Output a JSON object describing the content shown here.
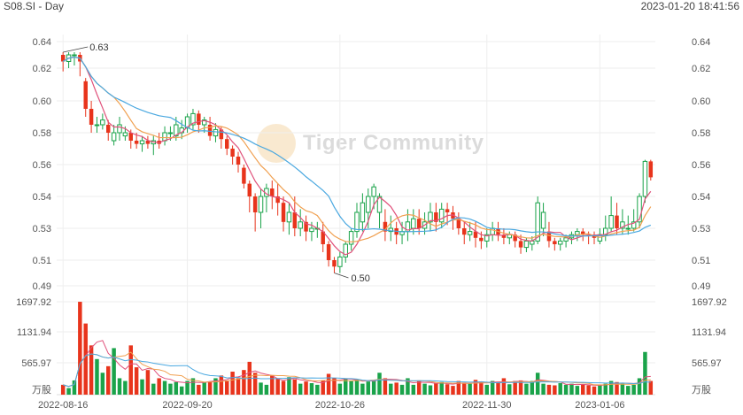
{
  "header": {
    "symbol_period": "S08.SI - Day",
    "timestamp": "2023-01-20 18:41:56"
  },
  "watermark": {
    "text": "Tiger Community"
  },
  "colors": {
    "up": "#1aa34a",
    "down": "#e8341c",
    "ma_short": "#e0507a",
    "ma_mid": "#f0a050",
    "ma_long": "#4aa8e0",
    "grid": "#eeeeee"
  },
  "chart_data": {
    "type": "candlestick",
    "price_axis": {
      "ticks": [
        "0.64",
        "0.62",
        "0.60",
        "0.58",
        "0.56",
        "0.54",
        "0.53",
        "0.51",
        "0.49"
      ]
    },
    "volume_axis": {
      "ticks": [
        "1697.92",
        "1131.94",
        "565.97"
      ],
      "unit": "万股"
    },
    "x_ticks": [
      "2022-08-16",
      "2022-09-20",
      "2022-10-26",
      "2022-11-30",
      "2023-01-06"
    ],
    "annotations": [
      {
        "label": "0.63"
      },
      {
        "label": "0.50"
      }
    ],
    "bars": [
      {
        "date": "2022-08-16",
        "o": 0.63,
        "c": 0.625,
        "h": 0.632,
        "l": 0.618,
        "v": 180
      },
      {
        "o": 0.625,
        "c": 0.63,
        "h": 0.632,
        "l": 0.62,
        "v": 120
      },
      {
        "o": 0.63,
        "c": 0.63,
        "h": 0.632,
        "l": 0.622,
        "v": 260
      },
      {
        "o": 0.63,
        "c": 0.625,
        "h": 0.632,
        "l": 0.615,
        "v": 1697
      },
      {
        "o": 0.612,
        "c": 0.595,
        "h": 0.614,
        "l": 0.59,
        "v": 1300
      },
      {
        "o": 0.595,
        "c": 0.585,
        "h": 0.6,
        "l": 0.58,
        "v": 900
      },
      {
        "o": 0.585,
        "c": 0.585,
        "h": 0.59,
        "l": 0.58,
        "v": 650
      },
      {
        "o": 0.585,
        "c": 0.588,
        "h": 0.592,
        "l": 0.582,
        "v": 400
      },
      {
        "o": 0.585,
        "c": 0.58,
        "h": 0.588,
        "l": 0.575,
        "v": 520
      },
      {
        "o": 0.575,
        "c": 0.58,
        "h": 0.585,
        "l": 0.572,
        "v": 850
      },
      {
        "o": 0.58,
        "c": 0.585,
        "h": 0.59,
        "l": 0.575,
        "v": 300
      },
      {
        "o": 0.578,
        "c": 0.58,
        "h": 0.584,
        "l": 0.575,
        "v": 250
      },
      {
        "o": 0.58,
        "c": 0.575,
        "h": 0.582,
        "l": 0.57,
        "v": 900
      },
      {
        "o": 0.575,
        "c": 0.573,
        "h": 0.58,
        "l": 0.57,
        "v": 500
      },
      {
        "o": 0.573,
        "c": 0.575,
        "h": 0.578,
        "l": 0.568,
        "v": 280
      },
      {
        "o": 0.575,
        "c": 0.573,
        "h": 0.578,
        "l": 0.57,
        "v": 450
      },
      {
        "o": 0.573,
        "c": 0.575,
        "h": 0.578,
        "l": 0.566,
        "v": 200
      },
      {
        "o": 0.575,
        "c": 0.573,
        "h": 0.58,
        "l": 0.57,
        "v": 300
      },
      {
        "o": 0.575,
        "c": 0.58,
        "h": 0.584,
        "l": 0.572,
        "v": 250
      },
      {
        "o": 0.58,
        "c": 0.58,
        "h": 0.584,
        "l": 0.575,
        "v": 200
      },
      {
        "o": 0.578,
        "c": 0.585,
        "h": 0.59,
        "l": 0.575,
        "v": 230
      },
      {
        "o": 0.58,
        "c": 0.583,
        "h": 0.588,
        "l": 0.576,
        "v": 150
      },
      {
        "date": "2022-09-20",
        "o": 0.583,
        "c": 0.59,
        "h": 0.592,
        "l": 0.58,
        "v": 250
      },
      {
        "o": 0.585,
        "c": 0.592,
        "h": 0.595,
        "l": 0.582,
        "v": 300
      },
      {
        "o": 0.592,
        "c": 0.585,
        "h": 0.594,
        "l": 0.58,
        "v": 180
      },
      {
        "o": 0.585,
        "c": 0.588,
        "h": 0.59,
        "l": 0.58,
        "v": 230
      },
      {
        "o": 0.585,
        "c": 0.578,
        "h": 0.59,
        "l": 0.575,
        "v": 240
      },
      {
        "o": 0.578,
        "c": 0.582,
        "h": 0.586,
        "l": 0.574,
        "v": 300
      },
      {
        "o": 0.582,
        "c": 0.576,
        "h": 0.584,
        "l": 0.57,
        "v": 350
      },
      {
        "o": 0.576,
        "c": 0.57,
        "h": 0.578,
        "l": 0.566,
        "v": 260
      },
      {
        "o": 0.57,
        "c": 0.565,
        "h": 0.572,
        "l": 0.56,
        "v": 420
      },
      {
        "o": 0.565,
        "c": 0.56,
        "h": 0.568,
        "l": 0.555,
        "v": 300
      },
      {
        "o": 0.558,
        "c": 0.548,
        "h": 0.56,
        "l": 0.545,
        "v": 450
      },
      {
        "o": 0.548,
        "c": 0.54,
        "h": 0.55,
        "l": 0.535,
        "v": 600
      },
      {
        "o": 0.54,
        "c": 0.535,
        "h": 0.542,
        "l": 0.528,
        "v": 400
      },
      {
        "o": 0.535,
        "c": 0.54,
        "h": 0.545,
        "l": 0.53,
        "v": 220
      },
      {
        "o": 0.54,
        "c": 0.545,
        "h": 0.548,
        "l": 0.535,
        "v": 180
      },
      {
        "o": 0.545,
        "c": 0.54,
        "h": 0.55,
        "l": 0.536,
        "v": 350
      },
      {
        "o": 0.54,
        "c": 0.538,
        "h": 0.548,
        "l": 0.534,
        "v": 300
      },
      {
        "o": 0.538,
        "c": 0.532,
        "h": 0.54,
        "l": 0.528,
        "v": 250
      },
      {
        "o": 0.532,
        "c": 0.535,
        "h": 0.538,
        "l": 0.526,
        "v": 320
      },
      {
        "o": 0.535,
        "c": 0.53,
        "h": 0.54,
        "l": 0.525,
        "v": 280
      },
      {
        "o": 0.53,
        "c": 0.532,
        "h": 0.536,
        "l": 0.525,
        "v": 200
      },
      {
        "o": 0.532,
        "c": 0.528,
        "h": 0.534,
        "l": 0.522,
        "v": 240
      },
      {
        "o": 0.528,
        "c": 0.53,
        "h": 0.532,
        "l": 0.522,
        "v": 210
      },
      {
        "o": 0.53,
        "c": 0.53,
        "h": 0.532,
        "l": 0.524,
        "v": 180
      },
      {
        "o": 0.528,
        "c": 0.52,
        "h": 0.532,
        "l": 0.515,
        "v": 260
      },
      {
        "o": 0.52,
        "c": 0.51,
        "h": 0.522,
        "l": 0.505,
        "v": 380
      },
      {
        "o": 0.51,
        "c": 0.505,
        "h": 0.512,
        "l": 0.5,
        "v": 300
      },
      {
        "date": "2022-10-26",
        "o": 0.505,
        "c": 0.512,
        "h": 0.515,
        "l": 0.5,
        "v": 200
      },
      {
        "o": 0.512,
        "c": 0.52,
        "h": 0.522,
        "l": 0.508,
        "v": 300
      },
      {
        "o": 0.52,
        "c": 0.528,
        "h": 0.53,
        "l": 0.516,
        "v": 250
      },
      {
        "o": 0.528,
        "c": 0.535,
        "h": 0.538,
        "l": 0.524,
        "v": 280
      },
      {
        "o": 0.532,
        "c": 0.538,
        "h": 0.542,
        "l": 0.528,
        "v": 200
      },
      {
        "o": 0.535,
        "c": 0.54,
        "h": 0.545,
        "l": 0.53,
        "v": 240
      },
      {
        "o": 0.54,
        "c": 0.546,
        "h": 0.548,
        "l": 0.536,
        "v": 260
      },
      {
        "o": 0.535,
        "c": 0.54,
        "h": 0.542,
        "l": 0.53,
        "v": 400
      },
      {
        "o": 0.532,
        "c": 0.528,
        "h": 0.536,
        "l": 0.522,
        "v": 300
      },
      {
        "o": 0.528,
        "c": 0.53,
        "h": 0.534,
        "l": 0.522,
        "v": 200
      },
      {
        "o": 0.53,
        "c": 0.526,
        "h": 0.532,
        "l": 0.52,
        "v": 220
      },
      {
        "o": 0.526,
        "c": 0.528,
        "h": 0.532,
        "l": 0.52,
        "v": 180
      },
      {
        "o": 0.528,
        "c": 0.532,
        "h": 0.536,
        "l": 0.522,
        "v": 300
      },
      {
        "o": 0.53,
        "c": 0.533,
        "h": 0.536,
        "l": 0.526,
        "v": 180
      },
      {
        "o": 0.533,
        "c": 0.53,
        "h": 0.536,
        "l": 0.526,
        "v": 260
      },
      {
        "o": 0.53,
        "c": 0.532,
        "h": 0.535,
        "l": 0.526,
        "v": 200
      },
      {
        "o": 0.532,
        "c": 0.535,
        "h": 0.538,
        "l": 0.528,
        "v": 170
      },
      {
        "o": 0.535,
        "c": 0.532,
        "h": 0.538,
        "l": 0.528,
        "v": 210
      },
      {
        "o": 0.532,
        "c": 0.536,
        "h": 0.538,
        "l": 0.53,
        "v": 230
      },
      {
        "o": 0.536,
        "c": 0.535,
        "h": 0.538,
        "l": 0.531,
        "v": 190
      },
      {
        "o": 0.535,
        "c": 0.533,
        "h": 0.537,
        "l": 0.529,
        "v": 160
      },
      {
        "o": 0.533,
        "c": 0.53,
        "h": 0.535,
        "l": 0.526,
        "v": 250
      },
      {
        "o": 0.53,
        "c": 0.526,
        "h": 0.532,
        "l": 0.52,
        "v": 220
      },
      {
        "o": 0.526,
        "c": 0.528,
        "h": 0.532,
        "l": 0.522,
        "v": 200
      },
      {
        "o": 0.528,
        "c": 0.524,
        "h": 0.532,
        "l": 0.518,
        "v": 270
      },
      {
        "o": 0.524,
        "c": 0.522,
        "h": 0.528,
        "l": 0.517,
        "v": 240
      },
      {
        "date": "2022-11-30",
        "o": 0.522,
        "c": 0.526,
        "h": 0.53,
        "l": 0.518,
        "v": 180
      },
      {
        "o": 0.526,
        "c": 0.53,
        "h": 0.532,
        "l": 0.522,
        "v": 250
      },
      {
        "o": 0.53,
        "c": 0.526,
        "h": 0.532,
        "l": 0.522,
        "v": 220
      },
      {
        "o": 0.526,
        "c": 0.524,
        "h": 0.53,
        "l": 0.52,
        "v": 300
      },
      {
        "o": 0.524,
        "c": 0.526,
        "h": 0.528,
        "l": 0.52,
        "v": 190
      },
      {
        "o": 0.526,
        "c": 0.522,
        "h": 0.528,
        "l": 0.518,
        "v": 250
      },
      {
        "o": 0.522,
        "c": 0.518,
        "h": 0.526,
        "l": 0.514,
        "v": 260
      },
      {
        "o": 0.518,
        "c": 0.522,
        "h": 0.524,
        "l": 0.515,
        "v": 200
      },
      {
        "o": 0.52,
        "c": 0.522,
        "h": 0.525,
        "l": 0.516,
        "v": 250
      },
      {
        "o": 0.522,
        "c": 0.538,
        "h": 0.54,
        "l": 0.52,
        "v": 400
      },
      {
        "o": 0.53,
        "c": 0.535,
        "h": 0.538,
        "l": 0.525,
        "v": 200
      },
      {
        "o": 0.528,
        "c": 0.522,
        "h": 0.532,
        "l": 0.518,
        "v": 180
      },
      {
        "o": 0.522,
        "c": 0.52,
        "h": 0.524,
        "l": 0.516,
        "v": 170
      },
      {
        "o": 0.52,
        "c": 0.522,
        "h": 0.524,
        "l": 0.516,
        "v": 210
      },
      {
        "o": 0.522,
        "c": 0.524,
        "h": 0.526,
        "l": 0.518,
        "v": 180
      },
      {
        "o": 0.524,
        "c": 0.526,
        "h": 0.528,
        "l": 0.52,
        "v": 200
      },
      {
        "o": 0.526,
        "c": 0.528,
        "h": 0.53,
        "l": 0.522,
        "v": 160
      },
      {
        "o": 0.528,
        "c": 0.526,
        "h": 0.53,
        "l": 0.522,
        "v": 190
      },
      {
        "o": 0.526,
        "c": 0.525,
        "h": 0.528,
        "l": 0.52,
        "v": 170
      },
      {
        "o": 0.525,
        "c": 0.524,
        "h": 0.528,
        "l": 0.52,
        "v": 150
      },
      {
        "date": "2023-01-06",
        "o": 0.522,
        "c": 0.526,
        "h": 0.53,
        "l": 0.52,
        "v": 180
      },
      {
        "o": 0.526,
        "c": 0.53,
        "h": 0.534,
        "l": 0.522,
        "v": 200
      },
      {
        "o": 0.53,
        "c": 0.534,
        "h": 0.54,
        "l": 0.528,
        "v": 250
      },
      {
        "o": 0.534,
        "c": 0.53,
        "h": 0.538,
        "l": 0.526,
        "v": 230
      },
      {
        "o": 0.53,
        "c": 0.532,
        "h": 0.536,
        "l": 0.526,
        "v": 200
      },
      {
        "o": 0.53,
        "c": 0.53,
        "h": 0.534,
        "l": 0.526,
        "v": 160
      },
      {
        "o": 0.53,
        "c": 0.532,
        "h": 0.536,
        "l": 0.528,
        "v": 180
      },
      {
        "o": 0.532,
        "c": 0.54,
        "h": 0.542,
        "l": 0.53,
        "v": 300
      },
      {
        "o": 0.54,
        "c": 0.562,
        "h": 0.563,
        "l": 0.538,
        "v": 780
      },
      {
        "o": 0.562,
        "c": 0.552,
        "h": 0.563,
        "l": 0.55,
        "v": 250
      }
    ]
  }
}
